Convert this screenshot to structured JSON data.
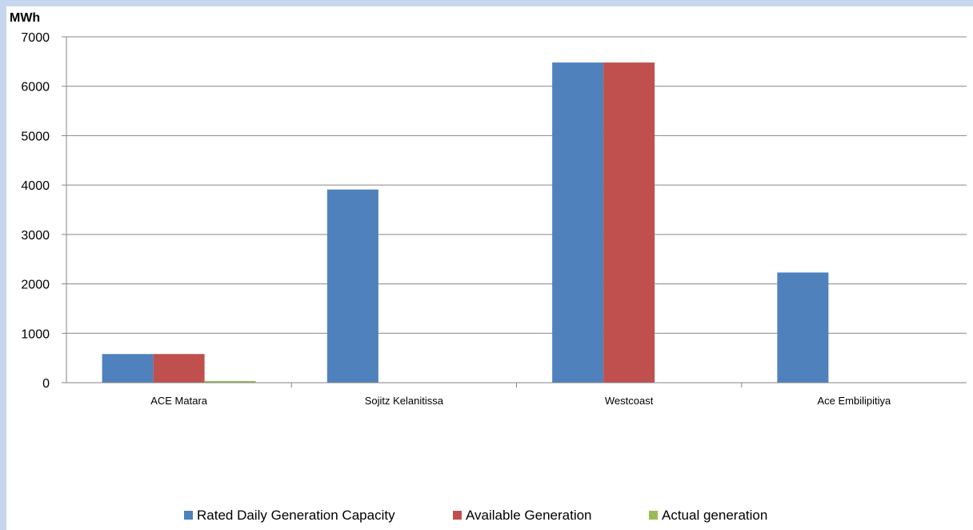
{
  "chart_data": {
    "type": "bar",
    "ylabel": "MWh",
    "categories": [
      "ACE Matara",
      "Sojitz Kelanitissa",
      "Westcoast",
      "Ace Embilipitiya"
    ],
    "series": [
      {
        "name": "Rated Daily Generation Capacity",
        "color": "#4f81bd",
        "values": [
          580,
          3910,
          6480,
          2230
        ]
      },
      {
        "name": "Available Generation",
        "color": "#c0504d",
        "values": [
          580,
          0,
          6480,
          0
        ]
      },
      {
        "name": "Actual generation",
        "color": "#9bbb59",
        "values": [
          35,
          0,
          0,
          0
        ]
      }
    ],
    "ylim": [
      0,
      7000
    ],
    "yticks": [
      0,
      1000,
      2000,
      3000,
      4000,
      5000,
      6000,
      7000
    ],
    "grid": true,
    "legend": "bottom"
  }
}
